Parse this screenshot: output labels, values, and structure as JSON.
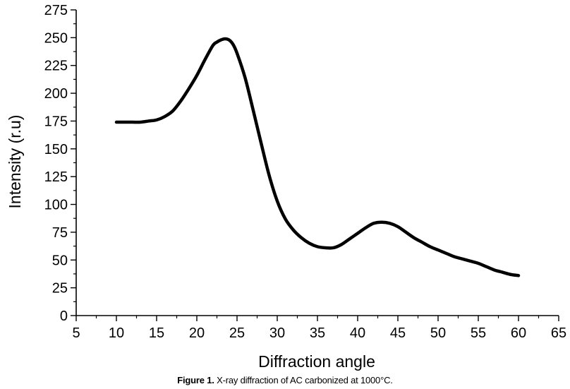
{
  "chart_data": {
    "type": "line",
    "title": "",
    "xlabel": "Diffraction angle",
    "ylabel": "Intensity (r.u)",
    "xlim": [
      5,
      65
    ],
    "ylim": [
      0,
      275
    ],
    "xticks": [
      5,
      10,
      15,
      20,
      25,
      30,
      35,
      40,
      45,
      50,
      55,
      60,
      65
    ],
    "yticks": [
      0,
      25,
      50,
      75,
      100,
      125,
      150,
      175,
      200,
      225,
      250,
      275
    ],
    "grid": false,
    "series": [
      {
        "name": "AC carbonized at 1000°C",
        "color": "#000000",
        "x": [
          10,
          11,
          12,
          13,
          14,
          15,
          16,
          17,
          18,
          19,
          20,
          21,
          22,
          22.5,
          23,
          23.5,
          24,
          24.5,
          25,
          26,
          27,
          28,
          29,
          30,
          31,
          32,
          33,
          34,
          35,
          36,
          37,
          38,
          39,
          40,
          41,
          42,
          43,
          44,
          45,
          46,
          47,
          48,
          49,
          50,
          51,
          52,
          53,
          54,
          55,
          56,
          57,
          58,
          59,
          60
        ],
        "y": [
          174,
          174,
          174,
          174,
          175,
          176,
          179,
          184,
          193,
          204,
          216,
          230,
          243,
          246,
          248,
          249,
          248,
          244,
          236,
          214,
          185,
          155,
          126,
          103,
          87,
          77,
          70,
          65,
          62,
          61,
          61,
          64,
          69,
          74,
          79,
          83,
          84,
          83,
          80,
          75,
          70,
          66,
          62,
          59,
          56,
          53,
          51,
          49,
          47,
          44,
          41,
          39,
          37,
          36
        ]
      }
    ]
  },
  "caption": {
    "label": "Figure 1.",
    "text": "X-ray diffraction of AC carbonized at 1000°C."
  }
}
